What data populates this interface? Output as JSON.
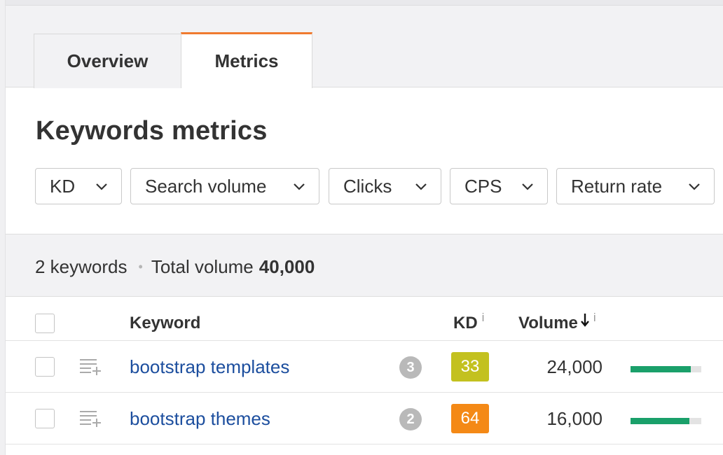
{
  "tabs": [
    {
      "label": "Overview"
    },
    {
      "label": "Metrics",
      "active": true
    }
  ],
  "accent_color": "#f07a2f",
  "page_title": "Keywords metrics",
  "filters": [
    {
      "label": "KD"
    },
    {
      "label": "Search volume"
    },
    {
      "label": "Clicks"
    },
    {
      "label": "CPS"
    },
    {
      "label": "Return rate"
    }
  ],
  "summary": {
    "keywords": "2 keywords",
    "separator": "•",
    "total_label": "Total volume",
    "total_value": "40,000"
  },
  "table": {
    "headers": {
      "keyword": "Keyword",
      "kd": "KD",
      "kd_info": "i",
      "volume": "Volume",
      "volume_info": "i"
    },
    "rows": [
      {
        "keyword": "bootstrap templates",
        "serp_count": "3",
        "kd": "33",
        "kd_color": "#c3c11f",
        "volume": "24,000",
        "volume_share": 0.85
      },
      {
        "keyword": "bootstrap themes",
        "serp_count": "2",
        "kd": "64",
        "kd_color": "#f48916",
        "volume": "16,000",
        "volume_share": 0.83
      }
    ]
  },
  "icons": {
    "chevron": "chevron-down-icon",
    "add_to_list": "add-to-list-icon",
    "sort": "sort-desc-arrow-icon"
  },
  "volume_bar_color": "#1aa06a"
}
